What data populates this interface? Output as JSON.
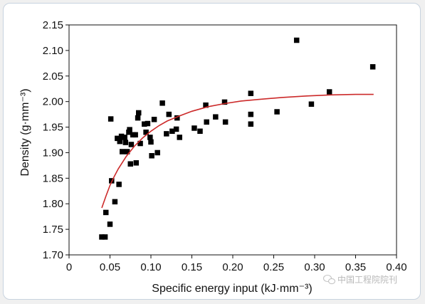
{
  "chart_data": {
    "type": "scatter",
    "xlabel": "Specific energy input (kJ·mm⁻³)",
    "ylabel": "Density (g·mm⁻³)",
    "xlim": [
      0,
      0.4
    ],
    "ylim": [
      1.7,
      2.15
    ],
    "xticks": [
      0,
      0.05,
      0.1,
      0.15,
      0.2,
      0.25,
      0.3,
      0.35,
      0.4
    ],
    "xtick_labels": [
      "0",
      "0.05",
      "0.10",
      "0.15",
      "0.20",
      "0.25",
      "0.30",
      "0.35",
      "0.40"
    ],
    "yticks": [
      1.7,
      1.75,
      1.8,
      1.85,
      1.9,
      1.95,
      2.0,
      2.05,
      2.1,
      2.15
    ],
    "ytick_labels": [
      "1.70",
      "1.75",
      "1.80",
      "1.85",
      "1.90",
      "1.95",
      "2.00",
      "2.05",
      "2.10",
      "2.15"
    ],
    "grid": false,
    "marker_color": "#000000",
    "fit_color": "#cc2a2a",
    "points": [
      [
        0.04,
        1.735
      ],
      [
        0.044,
        1.735
      ],
      [
        0.045,
        1.783
      ],
      [
        0.05,
        1.76
      ],
      [
        0.051,
        1.966
      ],
      [
        0.052,
        1.845
      ],
      [
        0.056,
        1.804
      ],
      [
        0.059,
        1.928
      ],
      [
        0.061,
        1.838
      ],
      [
        0.062,
        1.922
      ],
      [
        0.064,
        1.932
      ],
      [
        0.065,
        1.902
      ],
      [
        0.068,
        1.93
      ],
      [
        0.069,
        1.92
      ],
      [
        0.071,
        1.902
      ],
      [
        0.073,
        1.94
      ],
      [
        0.074,
        1.945
      ],
      [
        0.075,
        1.878
      ],
      [
        0.076,
        1.916
      ],
      [
        0.078,
        1.935
      ],
      [
        0.081,
        1.935
      ],
      [
        0.082,
        1.88
      ],
      [
        0.084,
        1.968
      ],
      [
        0.085,
        1.978
      ],
      [
        0.087,
        1.918
      ],
      [
        0.092,
        1.956
      ],
      [
        0.094,
        1.94
      ],
      [
        0.096,
        1.957
      ],
      [
        0.099,
        1.93
      ],
      [
        0.1,
        1.921
      ],
      [
        0.101,
        1.894
      ],
      [
        0.104,
        1.965
      ],
      [
        0.108,
        1.9
      ],
      [
        0.114,
        1.997
      ],
      [
        0.119,
        1.937
      ],
      [
        0.122,
        1.975
      ],
      [
        0.126,
        1.942
      ],
      [
        0.131,
        1.946
      ],
      [
        0.132,
        1.968
      ],
      [
        0.135,
        1.93
      ],
      [
        0.153,
        1.948
      ],
      [
        0.16,
        1.942
      ],
      [
        0.167,
        1.993
      ],
      [
        0.168,
        1.96
      ],
      [
        0.179,
        1.97
      ],
      [
        0.19,
        1.999
      ],
      [
        0.191,
        1.96
      ],
      [
        0.222,
        2.016
      ],
      [
        0.222,
        1.975
      ],
      [
        0.222,
        1.956
      ],
      [
        0.254,
        1.98
      ],
      [
        0.278,
        2.12
      ],
      [
        0.296,
        1.995
      ],
      [
        0.318,
        2.019
      ],
      [
        0.371,
        2.068
      ]
    ],
    "fit_curve": {
      "color": "#cc2a2a",
      "x": [
        0.04,
        0.045,
        0.05,
        0.055,
        0.06,
        0.07,
        0.08,
        0.09,
        0.1,
        0.11,
        0.12,
        0.135,
        0.15,
        0.17,
        0.19,
        0.21,
        0.23,
        0.26,
        0.29,
        0.32,
        0.35,
        0.372
      ],
      "y": [
        1.792,
        1.815,
        1.836,
        1.853,
        1.868,
        1.893,
        1.913,
        1.929,
        1.942,
        1.953,
        1.962,
        1.972,
        1.981,
        1.99,
        1.996,
        2.001,
        2.004,
        2.008,
        2.011,
        2.013,
        2.014,
        2.014
      ]
    }
  },
  "watermark": {
    "icon": "wechat-icon",
    "text": "中国工程院院刊"
  }
}
